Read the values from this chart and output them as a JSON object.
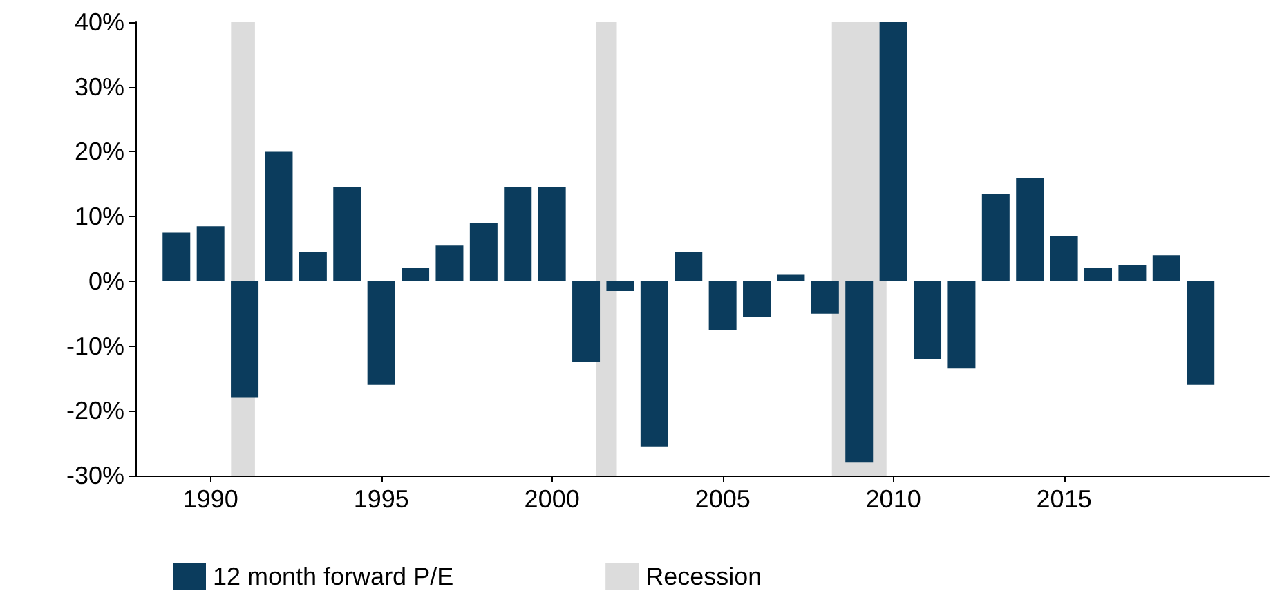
{
  "chart_data": {
    "type": "bar",
    "x": [
      1989,
      1990,
      1991,
      1992,
      1993,
      1994,
      1995,
      1996,
      1997,
      1998,
      1999,
      2000,
      2001,
      2002,
      2003,
      2004,
      2005,
      2006,
      2007,
      2008,
      2009,
      2010,
      2011,
      2012,
      2013,
      2014,
      2015,
      2016,
      2017,
      2018,
      2019
    ],
    "series": [
      {
        "name": "12 month forward P/E",
        "color": "#0b3c5d",
        "values": [
          7.5,
          8.5,
          -18,
          20,
          4.5,
          14.5,
          -16,
          2,
          5.5,
          9,
          14.5,
          14.5,
          -12.5,
          -1.5,
          -25.5,
          4.5,
          -7.5,
          -5.5,
          1,
          -5,
          -28,
          40,
          -12,
          -13.5,
          13.5,
          16,
          7,
          2,
          2.5,
          4,
          -16
        ]
      }
    ],
    "xlim": [
      1987.8,
      2021
    ],
    "xticks": [
      1990,
      1995,
      2000,
      2005,
      2010,
      2015
    ],
    "ylim": [
      -30,
      40
    ],
    "yticks": [
      {
        "value": -30,
        "label": "-30%"
      },
      {
        "value": -20,
        "label": "-20%"
      },
      {
        "value": -10,
        "label": "-10%"
      },
      {
        "value": 0,
        "label": "0%"
      },
      {
        "value": 10,
        "label": "10%"
      },
      {
        "value": 20,
        "label": "20%"
      },
      {
        "value": 30,
        "label": "30%"
      },
      {
        "value": 40,
        "label": "40%"
      }
    ],
    "bands": [
      {
        "axis": "x",
        "from": 1990.6,
        "to": 1991.3,
        "label": "Recession",
        "color": "#dcdcdc"
      },
      {
        "axis": "x",
        "from": 2001.3,
        "to": 2001.9,
        "color": "#dcdcdc"
      },
      {
        "axis": "x",
        "from": 2008.2,
        "to": 2009.8,
        "color": "#dcdcdc"
      }
    ],
    "grid": false,
    "legend": "bottom left"
  }
}
